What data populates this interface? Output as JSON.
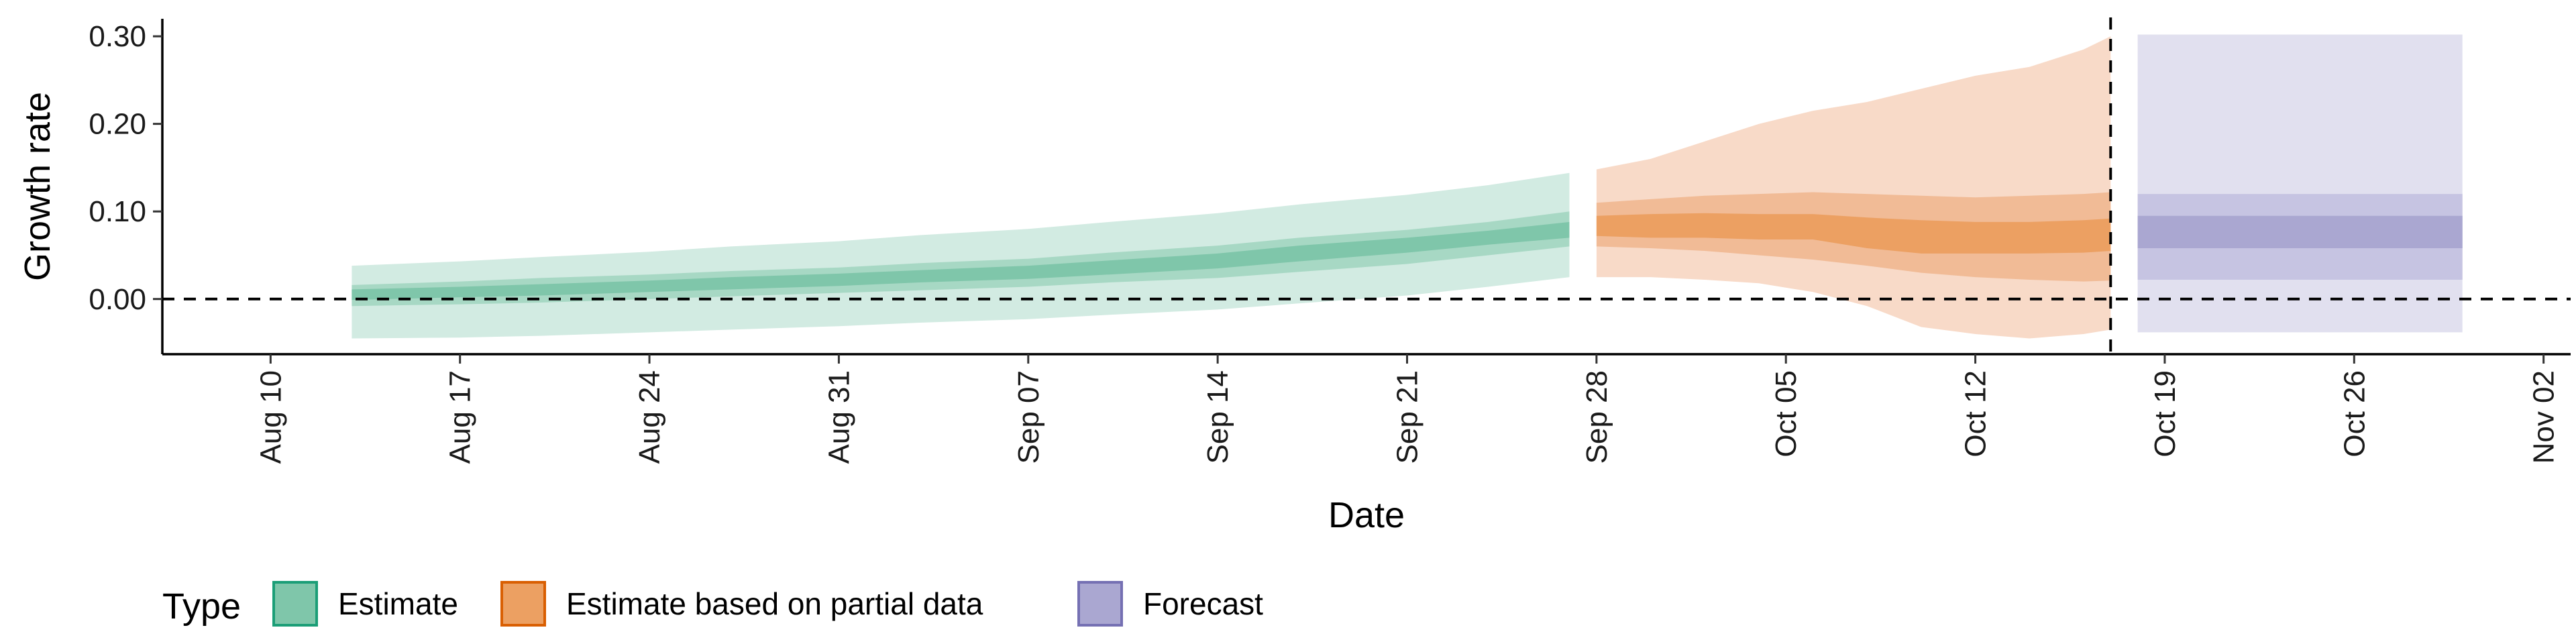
{
  "chart_data": {
    "type": "area",
    "title": "",
    "xlabel": "Date",
    "ylabel": "Growth rate",
    "x_range": [
      "2020-08-06",
      "2020-11-03"
    ],
    "ylim": [
      -0.063,
      0.32
    ],
    "y_ticks": [
      0.0,
      0.1,
      0.2,
      0.3
    ],
    "y_tick_labels": [
      "0.00",
      "0.10",
      "0.20",
      "0.30"
    ],
    "x_ticks": [
      "2020-08-10",
      "2020-08-17",
      "2020-08-24",
      "2020-08-31",
      "2020-09-07",
      "2020-09-14",
      "2020-09-21",
      "2020-09-28",
      "2020-10-05",
      "2020-10-12",
      "2020-10-19",
      "2020-10-26",
      "2020-11-02"
    ],
    "x_tick_labels": [
      "Aug 10",
      "Aug 17",
      "Aug 24",
      "Aug 31",
      "Sep 07",
      "Sep 14",
      "Sep 21",
      "Sep 28",
      "Oct 05",
      "Oct 12",
      "Oct 19",
      "Oct 26",
      "Nov 02"
    ],
    "reference_lines": {
      "horizontal_y": 0.0,
      "vertical_date": "2020-10-17"
    },
    "legend": {
      "title": "Type",
      "position": "bottom-left",
      "entries": [
        {
          "label": "Estimate",
          "fill": "#7fc6aa",
          "border": "#1b9e77"
        },
        {
          "label": "Estimate based on partial data",
          "fill": "#eca062",
          "border": "#d95f02"
        },
        {
          "label": "Forecast",
          "fill": "#aaa7d1",
          "border": "#7570b3"
        }
      ]
    },
    "series": [
      {
        "name": "Estimate",
        "colors": {
          "outer": "#d2ebe2",
          "mid": "#a7d8c4",
          "inner": "#7fc6aa"
        },
        "x": [
          "2020-08-13",
          "2020-08-17",
          "2020-08-20",
          "2020-08-24",
          "2020-08-27",
          "2020-08-31",
          "2020-09-03",
          "2020-09-07",
          "2020-09-10",
          "2020-09-14",
          "2020-09-17",
          "2020-09-21",
          "2020-09-24",
          "2020-09-27"
        ],
        "outer_lower": [
          -0.045,
          -0.044,
          -0.042,
          -0.038,
          -0.035,
          -0.031,
          -0.027,
          -0.023,
          -0.018,
          -0.012,
          -0.005,
          0.004,
          0.014,
          0.025
        ],
        "mid_lower": [
          -0.008,
          -0.006,
          -0.004,
          0.0,
          0.003,
          0.007,
          0.01,
          0.014,
          0.019,
          0.024,
          0.031,
          0.04,
          0.05,
          0.06
        ],
        "inner_lower": [
          -0.001,
          0.002,
          0.004,
          0.008,
          0.011,
          0.015,
          0.019,
          0.023,
          0.028,
          0.035,
          0.043,
          0.053,
          0.062,
          0.07
        ],
        "inner_upper": [
          0.011,
          0.014,
          0.017,
          0.021,
          0.025,
          0.029,
          0.033,
          0.038,
          0.044,
          0.052,
          0.061,
          0.07,
          0.078,
          0.088
        ],
        "mid_upper": [
          0.016,
          0.02,
          0.024,
          0.028,
          0.032,
          0.036,
          0.041,
          0.046,
          0.053,
          0.061,
          0.07,
          0.079,
          0.088,
          0.1
        ],
        "outer_upper": [
          0.038,
          0.043,
          0.048,
          0.054,
          0.06,
          0.066,
          0.073,
          0.08,
          0.088,
          0.098,
          0.108,
          0.119,
          0.13,
          0.144
        ]
      },
      {
        "name": "Estimate based on partial data",
        "colors": {
          "outer": "#f8dac8",
          "mid": "#f1bb96",
          "inner": "#eca062"
        },
        "x": [
          "2020-09-28",
          "2020-09-30",
          "2020-10-02",
          "2020-10-04",
          "2020-10-06",
          "2020-10-08",
          "2020-10-10",
          "2020-10-12",
          "2020-10-14",
          "2020-10-16",
          "2020-10-17"
        ],
        "outer_lower": [
          0.025,
          0.025,
          0.022,
          0.018,
          0.008,
          -0.008,
          -0.032,
          -0.04,
          -0.045,
          -0.04,
          -0.035
        ],
        "mid_lower": [
          0.06,
          0.058,
          0.055,
          0.05,
          0.045,
          0.038,
          0.03,
          0.025,
          0.022,
          0.02,
          0.021
        ],
        "inner_lower": [
          0.072,
          0.07,
          0.07,
          0.068,
          0.068,
          0.058,
          0.052,
          0.052,
          0.052,
          0.053,
          0.055
        ],
        "inner_upper": [
          0.095,
          0.097,
          0.098,
          0.097,
          0.097,
          0.093,
          0.09,
          0.088,
          0.088,
          0.09,
          0.092
        ],
        "mid_upper": [
          0.11,
          0.114,
          0.118,
          0.12,
          0.122,
          0.12,
          0.118,
          0.116,
          0.118,
          0.12,
          0.122
        ],
        "outer_upper": [
          0.148,
          0.16,
          0.18,
          0.2,
          0.215,
          0.225,
          0.24,
          0.255,
          0.265,
          0.285,
          0.3
        ]
      },
      {
        "name": "Forecast",
        "colors": {
          "outer": "#e1e0ef",
          "mid": "#c6c4e2",
          "inner": "#aaa7d1"
        },
        "x": [
          "2020-10-18",
          "2020-10-30"
        ],
        "outer_lower": [
          -0.038,
          -0.038
        ],
        "mid_lower": [
          0.022,
          0.022
        ],
        "inner_lower": [
          0.058,
          0.058
        ],
        "inner_upper": [
          0.095,
          0.095
        ],
        "mid_upper": [
          0.12,
          0.12
        ],
        "outer_upper": [
          0.302,
          0.302
        ]
      }
    ]
  }
}
